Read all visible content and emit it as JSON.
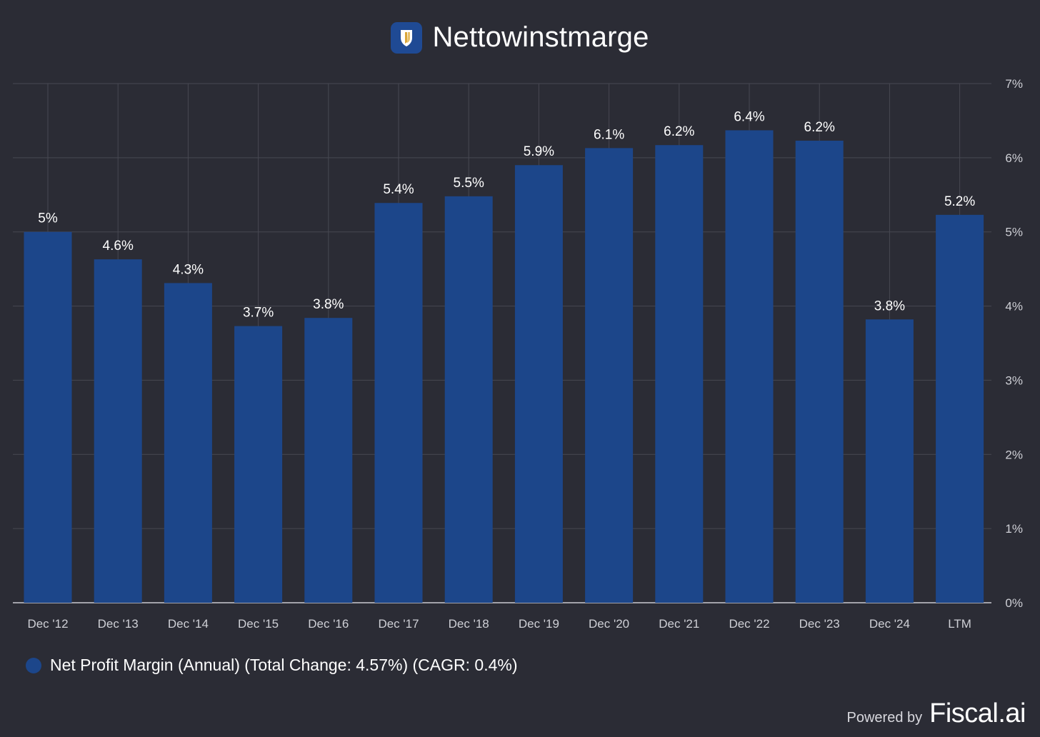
{
  "colors": {
    "background": "#2b2c35",
    "bar": "#1c468a",
    "grid": "#474852",
    "text": "#ffffff",
    "axis_text": "#cfd0d6"
  },
  "title": "Nettowinstmarge",
  "logo_icon": "shield-logo-icon",
  "legend": {
    "label": "Net Profit Margin (Annual) (Total Change: 4.57%) (CAGR: 0.4%)",
    "color": "#1c468a"
  },
  "footer": {
    "powered_by": "Powered by",
    "brand": "Fiscal.ai"
  },
  "chart_data": {
    "type": "bar",
    "categories": [
      "Dec '12",
      "Dec '13",
      "Dec '14",
      "Dec '15",
      "Dec '16",
      "Dec '17",
      "Dec '18",
      "Dec '19",
      "Dec '20",
      "Dec '21",
      "Dec '22",
      "Dec '23",
      "Dec '24",
      "LTM"
    ],
    "series": [
      {
        "name": "Net Profit Margin (Annual)",
        "values": [
          5.0,
          4.63,
          4.31,
          3.73,
          3.84,
          5.39,
          5.48,
          5.9,
          6.13,
          6.17,
          6.37,
          6.23,
          3.82,
          5.23
        ],
        "labels": [
          "5%",
          "4.6%",
          "4.3%",
          "3.7%",
          "3.8%",
          "5.4%",
          "5.5%",
          "5.9%",
          "6.1%",
          "6.2%",
          "6.4%",
          "6.2%",
          "3.8%",
          "5.2%"
        ]
      }
    ],
    "yaxis": {
      "position": "right",
      "ticks": [
        "0%",
        "1%",
        "2%",
        "3%",
        "4%",
        "5%",
        "6%",
        "7%"
      ],
      "ylim": [
        0,
        7
      ]
    },
    "grid": true,
    "legend_position": "bottom-left"
  }
}
